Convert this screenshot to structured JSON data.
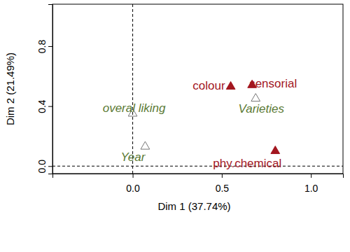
{
  "chart_data": {
    "type": "scatter",
    "x_label": "Dim 1 (37.74%)",
    "y_label": "Dim 2 (21.49%)",
    "xlim": [
      -0.45,
      1.18
    ],
    "ylim": [
      -0.05,
      1.08
    ],
    "xticks": [
      {
        "value": 0,
        "label": "0.0"
      },
      {
        "value": 0.5,
        "label": "0.5"
      },
      {
        "value": 1,
        "label": "1.0"
      }
    ],
    "yticks": [
      {
        "value": 0,
        "label": "0.0"
      },
      {
        "value": 0.4,
        "label": "0.4"
      },
      {
        "value": 0.8,
        "label": "0.8"
      }
    ],
    "hlines": [
      0
    ],
    "vlines": [
      0
    ],
    "series": [
      {
        "color": "#a3161f",
        "marker": "triangle-filled",
        "labels": [
          "colour",
          "sensorial",
          "phy.chemical"
        ],
        "x": [
          0.55,
          0.67,
          0.8
        ],
        "y": [
          0.53,
          0.54,
          0.1
        ]
      },
      {
        "color": "#5b7a35",
        "marker": "triangle-open",
        "labels": [
          "overal liking",
          "Varieties",
          "Year"
        ],
        "x": [
          0.0,
          0.69,
          0.07
        ],
        "y": [
          0.35,
          0.45,
          0.13
        ]
      }
    ]
  }
}
